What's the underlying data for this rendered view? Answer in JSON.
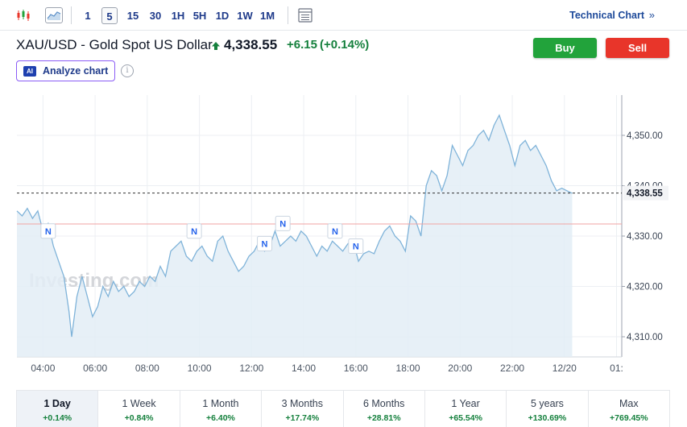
{
  "toolbar": {
    "timeframes": [
      "1",
      "5",
      "15",
      "30",
      "1H",
      "5H",
      "1D",
      "1W",
      "1M"
    ],
    "active_timeframe": "5",
    "technical_link": "Technical Chart"
  },
  "header": {
    "title": "XAU/USD - Gold Spot US Dollar",
    "price": "4,338.55",
    "change": "+6.15",
    "change_pct": "(+0.14%)",
    "buy_label": "Buy",
    "sell_label": "Sell",
    "analyze_label": "Analyze chart",
    "ai_badge": "AI"
  },
  "colors": {
    "up": "#15803d",
    "buy": "#22a33b",
    "sell": "#e8352a",
    "line": "#7fb3d9",
    "area": "#e3edf6"
  },
  "chart_data": {
    "type": "area",
    "watermark": "Investing.com",
    "x_ticks": [
      "04:00",
      "06:00",
      "08:00",
      "10:00",
      "12:00",
      "14:00",
      "16:00",
      "18:00",
      "20:00",
      "22:00",
      "12/20",
      "01:"
    ],
    "y_ticks": [
      "4,350.00",
      "4,340.00",
      "4,330.00",
      "4,320.00",
      "4,310.00"
    ],
    "ylim": [
      4306,
      4358
    ],
    "last_price_label": "4,338.55",
    "last_price": 4338.55,
    "prev_close": 4332.4,
    "news_markers": [
      "N",
      "N",
      "N",
      "N",
      "N",
      "N"
    ],
    "x": [
      3.0,
      3.2,
      3.4,
      3.6,
      3.8,
      4.0,
      4.2,
      4.4,
      4.6,
      4.8,
      5.0,
      5.1,
      5.3,
      5.5,
      5.7,
      5.9,
      6.1,
      6.3,
      6.5,
      6.7,
      6.9,
      7.1,
      7.3,
      7.5,
      7.7,
      7.9,
      8.1,
      8.3,
      8.5,
      8.7,
      8.9,
      9.1,
      9.3,
      9.5,
      9.7,
      9.9,
      10.1,
      10.3,
      10.5,
      10.7,
      10.9,
      11.1,
      11.3,
      11.5,
      11.7,
      11.9,
      12.1,
      12.3,
      12.5,
      12.7,
      12.9,
      13.1,
      13.3,
      13.5,
      13.7,
      13.9,
      14.1,
      14.3,
      14.5,
      14.7,
      14.9,
      15.1,
      15.3,
      15.5,
      15.7,
      15.9,
      16.1,
      16.3,
      16.5,
      16.7,
      16.9,
      17.1,
      17.3,
      17.5,
      17.7,
      17.9,
      18.1,
      18.3,
      18.5,
      18.7,
      18.9,
      19.1,
      19.3,
      19.5,
      19.7,
      19.9,
      20.1,
      20.3,
      20.5,
      20.7,
      20.9,
      21.1,
      21.3,
      21.5,
      21.7,
      21.9,
      22.1,
      22.3,
      22.5,
      22.7,
      22.9,
      23.1,
      23.3,
      23.5,
      23.7,
      23.9,
      24.1,
      24.3
    ],
    "y": [
      4335.0,
      4334.0,
      4335.5,
      4333.5,
      4335.0,
      4331.0,
      4332.5,
      4328.0,
      4325.0,
      4322.0,
      4315.0,
      4310.0,
      4318.0,
      4322.0,
      4318.0,
      4314.0,
      4316.0,
      4320.0,
      4318.0,
      4321.0,
      4319.0,
      4320.0,
      4318.0,
      4319.0,
      4321.0,
      4320.0,
      4322.0,
      4321.0,
      4324.0,
      4322.0,
      4327.0,
      4328.0,
      4329.0,
      4326.0,
      4325.0,
      4327.0,
      4328.0,
      4326.0,
      4325.0,
      4329.0,
      4330.0,
      4327.0,
      4325.0,
      4323.0,
      4324.0,
      4326.0,
      4327.0,
      4329.0,
      4327.0,
      4328.0,
      4331.0,
      4328.0,
      4329.0,
      4330.0,
      4329.0,
      4331.0,
      4330.0,
      4328.0,
      4326.0,
      4328.0,
      4327.0,
      4329.0,
      4328.0,
      4327.0,
      4328.5,
      4329.0,
      4325.0,
      4326.5,
      4327.0,
      4326.5,
      4329.0,
      4331.0,
      4332.0,
      4330.0,
      4329.0,
      4327.0,
      4334.0,
      4333.0,
      4330.0,
      4340.0,
      4343.0,
      4342.0,
      4339.0,
      4342.0,
      4348.0,
      4346.0,
      4344.0,
      4347.0,
      4348.0,
      4350.0,
      4351.0,
      4349.0,
      4352.0,
      4354.0,
      4351.0,
      4348.0,
      4344.0,
      4348.0,
      4349.0,
      4347.0,
      4348.0,
      4346.0,
      4344.0,
      4341.0,
      4339.0,
      4339.5,
      4339.0,
      4338.5
    ]
  },
  "periods": [
    {
      "label": "1 Day",
      "value": "+0.14%"
    },
    {
      "label": "1 Week",
      "value": "+0.84%"
    },
    {
      "label": "1 Month",
      "value": "+6.40%"
    },
    {
      "label": "3 Months",
      "value": "+17.74%"
    },
    {
      "label": "6 Months",
      "value": "+28.81%"
    },
    {
      "label": "1 Year",
      "value": "+65.54%"
    },
    {
      "label": "5 years",
      "value": "+130.69%"
    },
    {
      "label": "Max",
      "value": "+769.45%"
    }
  ]
}
